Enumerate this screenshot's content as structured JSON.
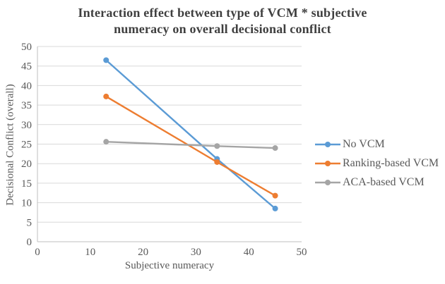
{
  "title": "Interaction effect between type of VCM * subjective numeracy on overall decisional conflict",
  "chart_data": {
    "type": "line",
    "title": "Interaction effect between type of VCM * subjective numeracy on overall decisional conflict",
    "xlabel": "Subjective numeracy",
    "ylabel": "Decisional Conflict (overall)",
    "x": [
      13,
      34,
      45
    ],
    "series": [
      {
        "name": "No VCM",
        "color": "#5B9BD5",
        "values": [
          46.5,
          21.2,
          8.5
        ]
      },
      {
        "name": "Ranking-based VCM",
        "color": "#ED7D31",
        "values": [
          37.2,
          20.4,
          11.8
        ]
      },
      {
        "name": "ACA-based VCM",
        "color": "#A5A5A5",
        "values": [
          25.6,
          24.5,
          24.0
        ]
      }
    ],
    "xlim": [
      0,
      50
    ],
    "ylim": [
      0,
      50
    ],
    "xticks": [
      0,
      10,
      20,
      30,
      40,
      50
    ],
    "yticks": [
      0,
      5,
      10,
      15,
      20,
      25,
      30,
      35,
      40,
      45,
      50
    ],
    "grid": "horizontal",
    "legend_position": "right"
  },
  "colors": {
    "gridline": "#D9D9D9",
    "axis_line": "#BFBFBF",
    "tick_text": "#595959",
    "title_text": "#3f3f3f"
  }
}
